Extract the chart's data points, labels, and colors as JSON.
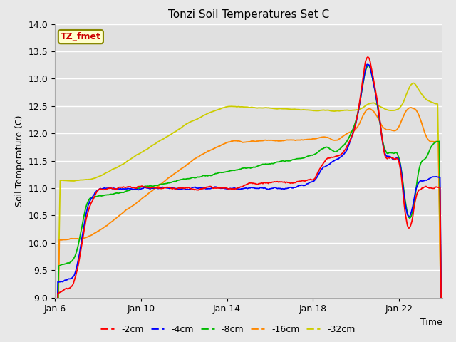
{
  "title": "Tonzi Soil Temperatures Set C",
  "xlabel": "Time",
  "ylabel": "Soil Temperature (C)",
  "ylim": [
    9.0,
    14.0
  ],
  "yticks": [
    9.0,
    9.5,
    10.0,
    10.5,
    11.0,
    11.5,
    12.0,
    12.5,
    13.0,
    13.5,
    14.0
  ],
  "xtick_labels": [
    "Jan 6",
    "Jan 10",
    "Jan 14",
    "Jan 18",
    "Jan 22"
  ],
  "xtick_positions": [
    0,
    4,
    8,
    12,
    16
  ],
  "xlim": [
    0,
    18
  ],
  "colors": {
    "-2cm": "#ff0000",
    "-4cm": "#0000ff",
    "-8cm": "#00bb00",
    "-16cm": "#ff8800",
    "-32cm": "#cccc00"
  },
  "legend_label": "TZ_fmet",
  "legend_bg": "#ffffcc",
  "legend_border": "#888800",
  "fig_bg": "#e8e8e8",
  "axes_bg": "#e0e0e0",
  "grid_color": "#ffffff",
  "title_fontsize": 11,
  "axis_fontsize": 9
}
